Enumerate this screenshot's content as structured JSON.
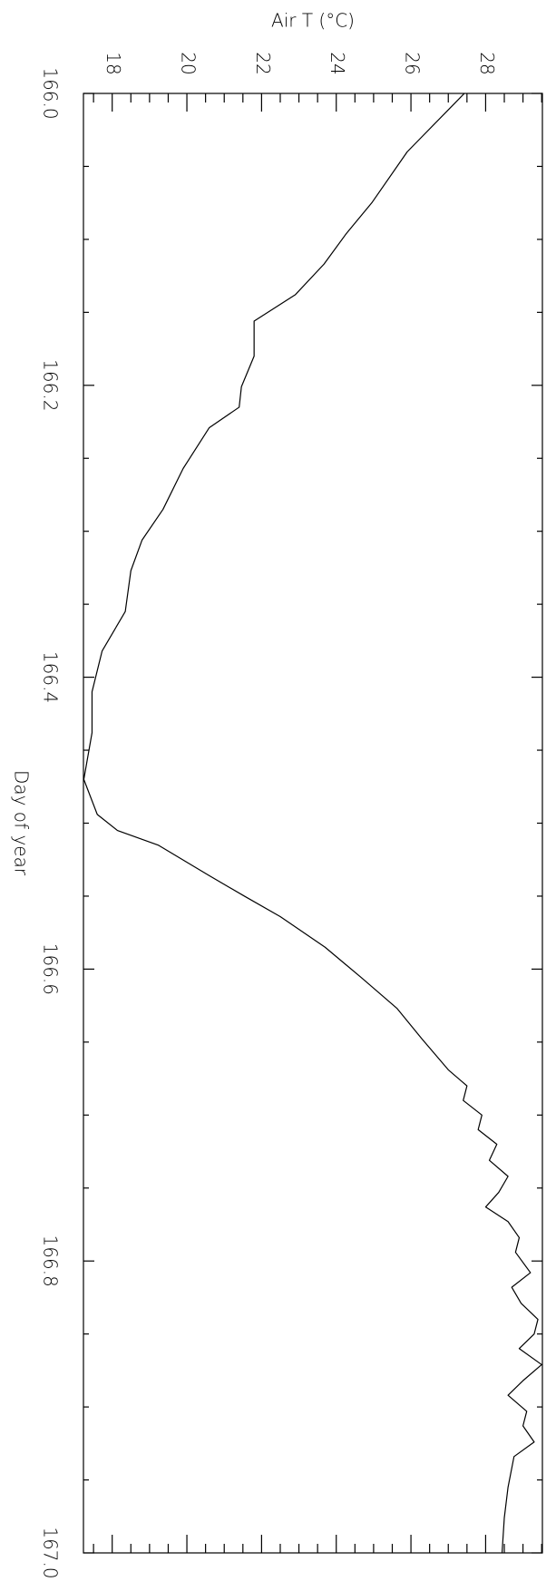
{
  "chart_data": {
    "type": "line",
    "orientation": "vertical",
    "xlabel": "Day of year",
    "ylabel": "Air T (°C)",
    "xlim": [
      166.0,
      167.0
    ],
    "xticks": [
      {
        "value": 166.0,
        "label": "166.0"
      },
      166.2,
      166.4,
      166.6,
      166.8,
      {
        "value": 167.0,
        "label": "167.0"
      }
    ],
    "ylim": [
      17.23,
      29.52
    ],
    "yticks": [
      18,
      20,
      22,
      24,
      26,
      28
    ],
    "color": "#000000",
    "x": [
      166.0,
      166.04,
      166.075,
      166.096,
      166.117,
      166.138,
      166.156,
      166.18,
      166.201,
      166.215,
      166.229,
      166.257,
      166.285,
      166.306,
      166.327,
      166.355,
      166.382,
      166.41,
      166.438,
      166.47,
      166.494,
      166.505,
      166.515,
      166.536,
      166.55,
      166.564,
      166.585,
      166.606,
      166.627,
      166.648,
      166.669,
      166.68,
      166.69,
      166.7,
      166.71,
      166.72,
      166.731,
      166.742,
      166.753,
      166.763,
      166.773,
      166.784,
      166.794,
      166.808,
      166.818,
      166.829,
      166.84,
      166.85,
      166.86,
      166.871,
      166.882,
      166.892,
      166.903,
      166.913,
      166.924,
      166.934,
      166.955,
      166.976,
      167.0
    ],
    "values": [
      27.43,
      25.9,
      24.95,
      24.27,
      23.67,
      22.9,
      21.8,
      21.8,
      21.46,
      21.4,
      20.6,
      19.9,
      19.36,
      18.8,
      18.5,
      18.35,
      17.73,
      17.46,
      17.46,
      17.24,
      17.6,
      18.14,
      19.23,
      20.6,
      21.54,
      22.5,
      23.7,
      24.68,
      25.63,
      26.3,
      27.0,
      27.5,
      27.4,
      27.9,
      27.8,
      28.3,
      28.1,
      28.6,
      28.35,
      28.0,
      28.6,
      28.9,
      28.8,
      29.2,
      28.7,
      28.95,
      29.4,
      29.3,
      28.9,
      29.5,
      29.0,
      28.6,
      29.1,
      29.0,
      29.3,
      28.76,
      28.6,
      28.5,
      28.44
    ]
  }
}
